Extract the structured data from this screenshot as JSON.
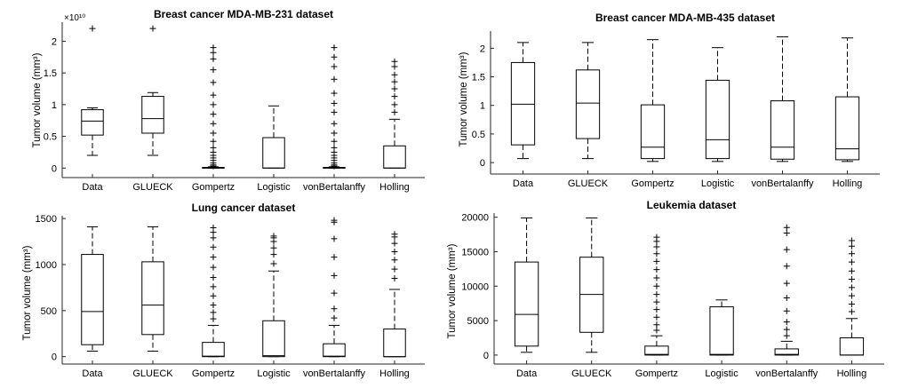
{
  "chart_data": [
    {
      "type": "box",
      "title": "Breast cancer MDA-MB-231 dataset",
      "ylabel": "Tumor volume (mm³)",
      "y_multiplier": "×10¹⁰",
      "ylim": [
        -0.15,
        2.3
      ],
      "yticks": [
        "0",
        "0.5",
        "1",
        "1.5",
        "2"
      ],
      "yticks_values": [
        0,
        0.5,
        1,
        1.5,
        2
      ],
      "categories": [
        "Data",
        "GLUECK",
        "Gompertz",
        "Logistic",
        "vonBertalanffy",
        "Holling"
      ],
      "boxes": [
        {
          "whisker_low": 0.2,
          "q1": 0.52,
          "median": 0.74,
          "q3": 0.92,
          "whisker_high": 0.95,
          "outliers": [
            2.2
          ]
        },
        {
          "whisker_low": 0.2,
          "q1": 0.55,
          "median": 0.78,
          "q3": 1.13,
          "whisker_high": 1.19,
          "outliers": [
            2.2
          ]
        },
        {
          "whisker_low": 0.0,
          "q1": 0.0,
          "median": 0.0,
          "q3": 0.01,
          "whisker_high": 0.02,
          "outliers": [
            0.03,
            0.05,
            0.08,
            0.12,
            0.16,
            0.2,
            0.25,
            0.32,
            0.42,
            0.55,
            0.7,
            0.85,
            1.0,
            1.15,
            1.35,
            1.55,
            1.72,
            1.82,
            1.9
          ]
        },
        {
          "whisker_low": 0.0,
          "q1": 0.0,
          "median": 0.0,
          "q3": 0.48,
          "whisker_high": 0.98,
          "outliers": []
        },
        {
          "whisker_low": 0.0,
          "q1": 0.0,
          "median": 0.0,
          "q3": 0.01,
          "whisker_high": 0.02,
          "outliers": [
            0.03,
            0.05,
            0.08,
            0.12,
            0.16,
            0.2,
            0.25,
            0.32,
            0.42,
            0.55,
            0.7,
            0.88,
            1.02,
            1.18,
            1.4,
            1.6,
            1.75,
            1.9
          ]
        },
        {
          "whisker_low": 0.0,
          "q1": 0.0,
          "median": 0.0,
          "q3": 0.35,
          "whisker_high": 0.77,
          "outliers": [
            0.88,
            1.0,
            1.13,
            1.25,
            1.36,
            1.47,
            1.6,
            1.68
          ]
        }
      ]
    },
    {
      "type": "box",
      "title": "Breast cancer MDA-MB-435 dataset",
      "ylabel": "Tumor volume (mm³)",
      "ylim": [
        -0.2,
        2.3
      ],
      "yticks": [
        "0",
        "0.5",
        "1",
        "1.5",
        "2"
      ],
      "yticks_values": [
        0,
        0.5,
        1,
        1.5,
        2
      ],
      "categories": [
        "Data",
        "GLUECK",
        "Gompertz",
        "Logistic",
        "vonBertalanffy",
        "Holling"
      ],
      "boxes": [
        {
          "whisker_low": 0.07,
          "q1": 0.31,
          "median": 1.02,
          "q3": 1.75,
          "whisker_high": 2.1,
          "outliers": []
        },
        {
          "whisker_low": 0.07,
          "q1": 0.42,
          "median": 1.04,
          "q3": 1.62,
          "whisker_high": 2.1,
          "outliers": []
        },
        {
          "whisker_low": 0.02,
          "q1": 0.07,
          "median": 0.27,
          "q3": 1.01,
          "whisker_high": 2.15,
          "outliers": []
        },
        {
          "whisker_low": 0.02,
          "q1": 0.07,
          "median": 0.4,
          "q3": 1.44,
          "whisker_high": 2.01,
          "outliers": []
        },
        {
          "whisker_low": 0.02,
          "q1": 0.06,
          "median": 0.27,
          "q3": 1.08,
          "whisker_high": 2.2,
          "outliers": []
        },
        {
          "whisker_low": 0.02,
          "q1": 0.05,
          "median": 0.24,
          "q3": 1.15,
          "whisker_high": 2.18,
          "outliers": []
        }
      ]
    },
    {
      "type": "box",
      "title": "Lung cancer dataset",
      "ylabel": "Tumor volume (mm³)",
      "ylim": [
        -80,
        1530
      ],
      "yticks": [
        "0",
        "500",
        "1000",
        "1500"
      ],
      "yticks_values": [
        0,
        500,
        1000,
        1500
      ],
      "categories": [
        "Data",
        "GLUECK",
        "Gompertz",
        "Logistic",
        "vonBertalanffy",
        "Holling"
      ],
      "boxes": [
        {
          "whisker_low": 60,
          "q1": 130,
          "median": 490,
          "q3": 1110,
          "whisker_high": 1410,
          "outliers": []
        },
        {
          "whisker_low": 60,
          "q1": 240,
          "median": 560,
          "q3": 1030,
          "whisker_high": 1410,
          "outliers": []
        },
        {
          "whisker_low": 0,
          "q1": 0,
          "median": 5,
          "q3": 155,
          "whisker_high": 340,
          "outliers": [
            410,
            480,
            560,
            660,
            760,
            860,
            970,
            1080,
            1190,
            1290,
            1350,
            1400
          ]
        },
        {
          "whisker_low": 0,
          "q1": 0,
          "median": 10,
          "q3": 390,
          "whisker_high": 930,
          "outliers": [
            1010,
            1110,
            1180,
            1250,
            1290,
            1310
          ]
        },
        {
          "whisker_low": 0,
          "q1": 0,
          "median": 5,
          "q3": 140,
          "whisker_high": 340,
          "outliers": [
            420,
            520,
            690,
            880,
            1080,
            1280,
            1460,
            1480
          ]
        },
        {
          "whisker_low": 0,
          "q1": 0,
          "median": 0,
          "q3": 300,
          "whisker_high": 730,
          "outliers": [
            850,
            950,
            1050,
            1140,
            1230,
            1300,
            1330
          ]
        }
      ]
    },
    {
      "type": "box",
      "title": "Leukemia dataset",
      "ylabel": "Tumor volume (mm³)",
      "ylim": [
        -1300,
        20600
      ],
      "yticks": [
        "0",
        "5000",
        "10000",
        "15000",
        "20000"
      ],
      "yticks_values": [
        0,
        5000,
        10000,
        15000,
        20000
      ],
      "categories": [
        "Data",
        "GLUECK",
        "Gompertz",
        "Logistic",
        "vonBertalanffy",
        "Holling"
      ],
      "boxes": [
        {
          "whisker_low": 400,
          "q1": 1300,
          "median": 5900,
          "q3": 13500,
          "whisker_high": 19900,
          "outliers": []
        },
        {
          "whisker_low": 400,
          "q1": 3300,
          "median": 8800,
          "q3": 14200,
          "whisker_high": 19900,
          "outliers": []
        },
        {
          "whisker_low": 0,
          "q1": 0,
          "median": 100,
          "q3": 1300,
          "whisker_high": 2800,
          "outliers": [
            3600,
            4400,
            5500,
            6600,
            7700,
            8800,
            10000,
            11200,
            12400,
            13600,
            14700,
            15700,
            16500,
            17100
          ]
        },
        {
          "whisker_low": 0,
          "q1": 0,
          "median": 100,
          "q3": 7000,
          "whisker_high": 8000,
          "outliers": []
        },
        {
          "whisker_low": 0,
          "q1": 0,
          "median": 100,
          "q3": 900,
          "whisker_high": 2000,
          "outliers": [
            2800,
            3700,
            4800,
            6400,
            8300,
            10400,
            12900,
            15300,
            17700,
            18500
          ]
        },
        {
          "whisker_low": 0,
          "q1": 0,
          "median": 0,
          "q3": 2500,
          "whisker_high": 5300,
          "outliers": [
            6300,
            7400,
            8600,
            9800,
            11000,
            12200,
            13500,
            14700,
            15800,
            16600
          ]
        }
      ]
    }
  ]
}
